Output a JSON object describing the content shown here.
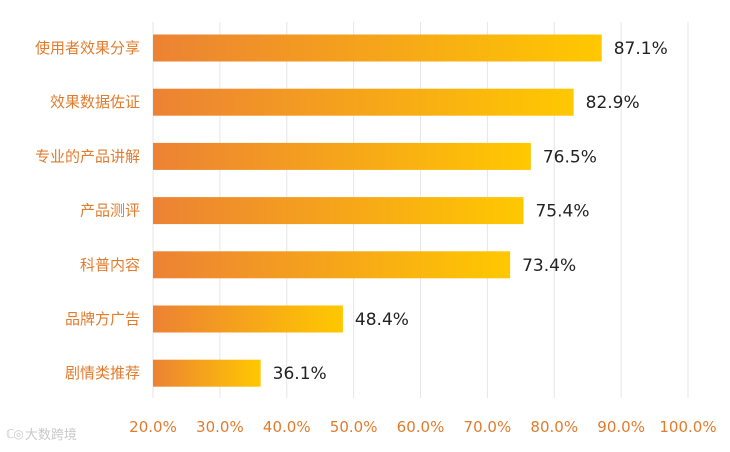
{
  "chart_data": {
    "type": "bar",
    "orientation": "horizontal",
    "categories": [
      "使用者效果分享",
      "效果数据佐证",
      "专业的产品讲解",
      "产品测评",
      "科普内容",
      "品牌方广告",
      "剧情类推荐"
    ],
    "values": [
      87.1,
      82.9,
      76.5,
      75.4,
      73.4,
      48.4,
      36.1
    ],
    "value_labels": [
      "87.1%",
      "82.9%",
      "76.5%",
      "75.4%",
      "73.4%",
      "48.4%",
      "36.1%"
    ],
    "xlim": [
      20,
      100
    ],
    "x_ticks": [
      20,
      30,
      40,
      50,
      60,
      70,
      80,
      90,
      100
    ],
    "x_tick_labels": [
      "20.0%",
      "30.0%",
      "40.0%",
      "50.0%",
      "60.0%",
      "70.0%",
      "80.0%",
      "90.0%",
      "100.0%"
    ],
    "grid": true,
    "colors": {
      "bar_start": "#EC8234",
      "bar_end": "#FFC800",
      "label": "#E07C2E",
      "value_text": "#222222",
      "grid": "#E6E6E6"
    },
    "title": "",
    "xlabel": "",
    "ylabel": ""
  },
  "watermark": {
    "text": "大数跨境",
    "icon": "dashuju-logo-icon"
  }
}
